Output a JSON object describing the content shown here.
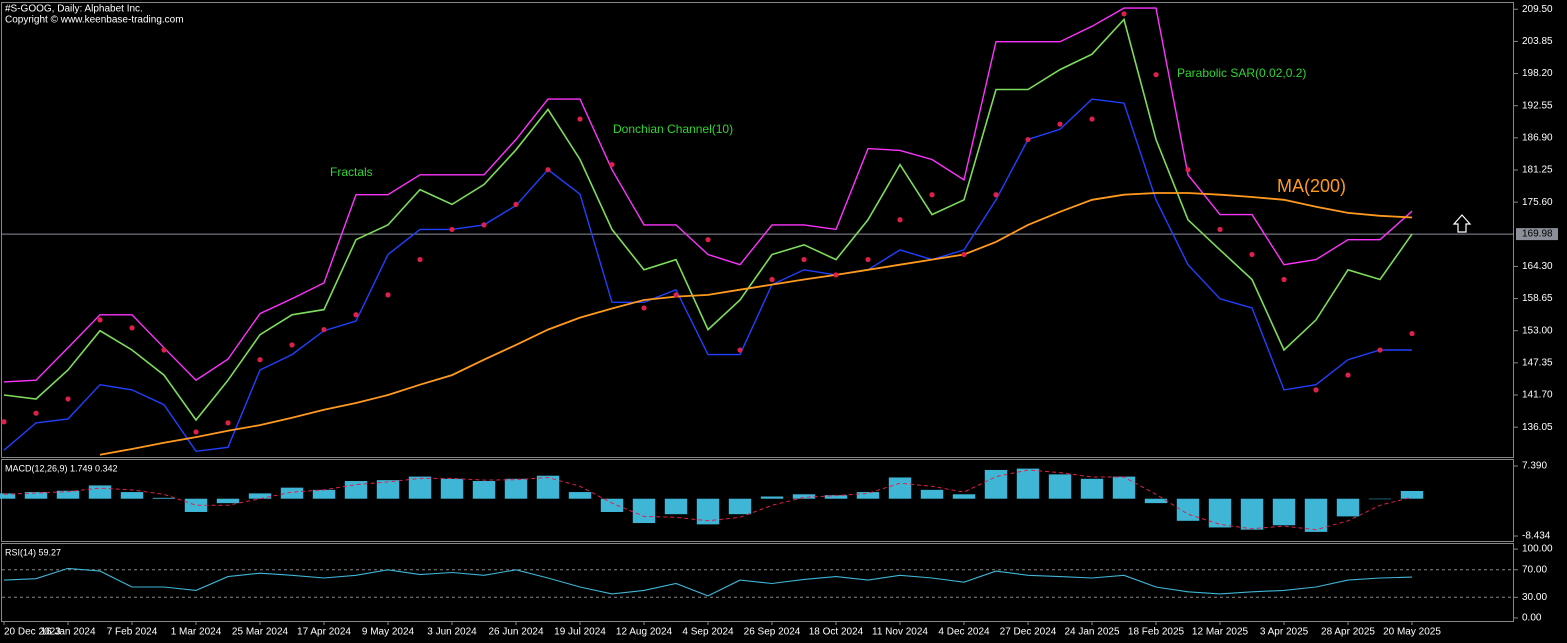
{
  "chart_data": [
    {
      "type": "line",
      "title": "#S-GOOG, Daily:  Alphabet Inc.",
      "subtitle": "Copyright © www.keenbase-trading.com",
      "categories": [
        "20 Dec 2023",
        null,
        "16 Jan 2024",
        null,
        "7 Feb 2024",
        null,
        "1 Mar 2024",
        null,
        "25 Mar 2024",
        null,
        "17 Apr 2024",
        null,
        "9 May 2024",
        null,
        "3 Jun 2024",
        null,
        "26 Jun 2024",
        null,
        "19 Jul 2024",
        null,
        "12 Aug 2024",
        null,
        "4 Sep 2024",
        null,
        "26 Sep 2024",
        null,
        "18 Oct 2024",
        null,
        "11 Nov 2024",
        null,
        "4 Dec 2024",
        null,
        "27 Dec 2024",
        null,
        "24 Jan 2025",
        null,
        "18 Feb 2025",
        null,
        "12 Mar 2025",
        null,
        "3 Apr 2025",
        null,
        "28 Apr 2025",
        null,
        "20 May 2025"
      ],
      "series": [
        {
          "color": "#7ddc5a",
          "values": [
            141.7,
            141,
            146.1,
            153,
            149.6,
            145.2,
            137.3,
            144.3,
            152.3,
            155.8,
            156.7,
            169,
            171.6,
            177.8,
            175.2,
            178.7,
            184.8,
            191.9,
            183.1,
            170.8,
            163.7,
            165.5,
            153.2,
            158.4,
            166.4,
            168.1,
            165.5,
            172.5,
            182.2,
            173.4,
            176,
            195.4,
            195.4,
            198.9,
            201.6,
            207.7,
            186.6,
            172.5,
            167.2,
            162,
            149.6,
            154.9,
            163.7,
            162,
            169.98
          ]
        },
        {
          "name": "MA(200)",
          "color": "#ff9a1f",
          "values": [
            null,
            null,
            null,
            131.2,
            132.2,
            133.3,
            134.3,
            135.4,
            136.4,
            137.7,
            139.1,
            140.3,
            141.7,
            143.5,
            145.2,
            147.9,
            150.5,
            153.2,
            155.3,
            156.9,
            158.4,
            159,
            159.3,
            160.2,
            161.1,
            162,
            162.8,
            163.7,
            164.6,
            165.5,
            166.4,
            168.6,
            171.6,
            173.9,
            176,
            176.9,
            177.2,
            177.2,
            176.9,
            176.5,
            176,
            174.8,
            173.7,
            173.2,
            172.9
          ]
        },
        {
          "name": "Parabolic SAR(0.02,0.2)",
          "color": "#e0204a",
          "style": "dots",
          "values": [
            137,
            138.5,
            141,
            154.9,
            153.5,
            149.6,
            135.2,
            136.8,
            147.9,
            150.5,
            153.2,
            155.8,
            159.3,
            165.5,
            170.8,
            171.6,
            175.2,
            181.3,
            190.2,
            182.2,
            157,
            159.3,
            169,
            149.6,
            162,
            165.5,
            162.8,
            165.5,
            172.5,
            176.9,
            166.4,
            176.9,
            186.6,
            189.3,
            190.2,
            208.7,
            198,
            181.3,
            170.8,
            166.4,
            162,
            142.6,
            145.2,
            149.6,
            152.5
          ]
        }
      ],
      "channel": {
        "name": "Donchian Channel(10)",
        "upper_color": "#ff33ff",
        "lower_color": "#2040ff",
        "upper": [
          144,
          144.3,
          150,
          155.8,
          155.8,
          150,
          144.3,
          148,
          156,
          158.6,
          161.4,
          176.9,
          176.9,
          180.4,
          180.4,
          180.4,
          186.6,
          193.7,
          193.7,
          181.3,
          171.6,
          171.6,
          166.4,
          164.6,
          171.6,
          171.6,
          170.8,
          185,
          184.7,
          183.1,
          179.5,
          203.8,
          203.8,
          203.8,
          206.5,
          209.7,
          209.7,
          180.4,
          173.4,
          173.4,
          164.6,
          165.5,
          169,
          169,
          174
        ],
        "lower": [
          132,
          136.8,
          137.5,
          143.5,
          142.6,
          140,
          131.8,
          132.5,
          146.1,
          148.8,
          153,
          154.7,
          166.4,
          170.8,
          170.8,
          171.6,
          175,
          181.3,
          177,
          158,
          158,
          160.2,
          148.8,
          148.8,
          161.1,
          163.7,
          162.8,
          163.7,
          167.2,
          165.5,
          167.2,
          176,
          186.6,
          188.4,
          193.7,
          193,
          176,
          164.6,
          158.6,
          157,
          142.6,
          143.5,
          147.9,
          149.6,
          149.6
        ]
      },
      "annotations": [
        "Fractals"
      ],
      "last_price": 169.98,
      "ylim": [
        130.8,
        210.6
      ],
      "yticks": [
        {
          "value": 209.5,
          "label": "209.50"
        },
        203.85,
        {
          "value": 198.2,
          "label": "198.20"
        },
        192.55,
        {
          "value": 186.9,
          "label": "186.90"
        },
        181.25,
        {
          "value": 175.6,
          "label": "175.60"
        },
        {
          "value": 164.3,
          "label": "164.30"
        },
        158.65,
        {
          "value": 153,
          "label": "153.00"
        },
        147.35,
        {
          "value": 141.7,
          "label": "141.70"
        },
        136.05
      ],
      "grid": false
    },
    {
      "type": "macd",
      "title": "MACD(12,26,9) 1.749 0.342",
      "series": [
        {
          "color": "#3fb6d6",
          "style": "bar",
          "values": [
            1.2,
            1.5,
            1.8,
            3,
            1.5,
            0.2,
            -3,
            -1,
            1.2,
            2.5,
            2,
            4,
            4.2,
            5,
            4.5,
            4,
            4.5,
            5.2,
            1.5,
            -3,
            -5.5,
            -3.5,
            -5.8,
            -3.5,
            0.5,
            1,
            0.8,
            1.5,
            4.8,
            2,
            1,
            6.5,
            6.8,
            5.5,
            4.5,
            5,
            -1,
            -5,
            -6.5,
            -7,
            -6,
            -7.5,
            -4,
            0,
            1.749
          ]
        },
        {
          "color": "#e0204a",
          "style": "dash",
          "values": [
            1,
            1.3,
            1.6,
            2.4,
            2,
            1,
            -1.5,
            -1.5,
            0,
            1.5,
            2,
            3.2,
            3.8,
            4.6,
            4.6,
            4.2,
            4.3,
            4.8,
            2.8,
            -1,
            -4,
            -4.2,
            -5,
            -4.2,
            -1.5,
            0.3,
            0.7,
            1.2,
            3.5,
            2.8,
            1.5,
            5,
            6.5,
            5.9,
            4.9,
            4.9,
            1,
            -3.5,
            -5.8,
            -6.8,
            -6.2,
            -7,
            -5,
            -1.5,
            0.342
          ]
        }
      ],
      "ylim": [
        -9.56,
        8.75
      ],
      "yticks": [
        {
          "value": 7.39,
          "label": "7.390"
        },
        -8.434
      ],
      "grid": false
    },
    {
      "type": "rsi",
      "title": "RSI(14) 59.27",
      "series": [
        {
          "color": "#3fb6d6",
          "values": [
            55,
            57,
            72,
            68,
            45,
            45,
            40,
            60,
            65,
            62,
            58,
            62,
            70,
            63,
            66,
            62,
            70,
            58,
            45,
            35,
            40,
            50,
            32,
            55,
            50,
            56,
            60,
            55,
            62,
            58,
            52,
            68,
            62,
            60,
            58,
            62,
            45,
            38,
            35,
            38,
            40,
            45,
            55,
            58,
            59.27
          ]
        }
      ],
      "ylim": [
        -4.4,
        107.4
      ],
      "yticks": [
        {
          "value": 100,
          "label": "100.00"
        },
        {
          "value": 70,
          "label": "70.00"
        },
        {
          "value": 30,
          "label": "30.00"
        },
        {
          "value": 0,
          "label": "0.00"
        }
      ],
      "levels": [
        70,
        30
      ]
    }
  ]
}
